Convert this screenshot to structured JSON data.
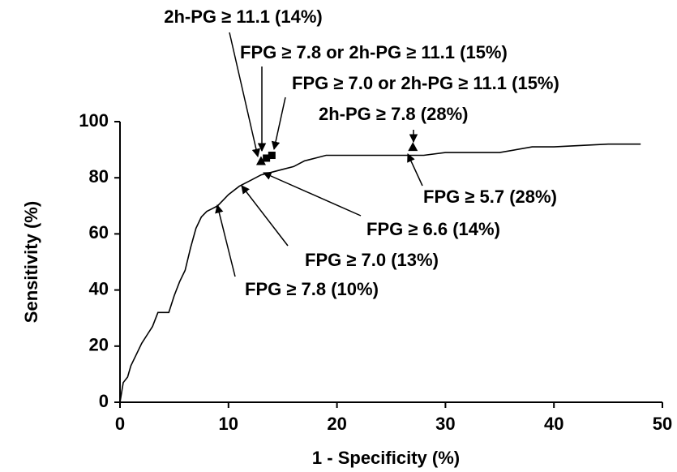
{
  "chart_data": {
    "type": "line",
    "x_label": "1 - Specificity (%)",
    "y_label": "Sensitivity (%)",
    "xlim": [
      0,
      50
    ],
    "xticks": [
      0,
      10,
      20,
      30,
      40,
      50
    ],
    "ylim": [
      0,
      100
    ],
    "yticks": [
      0,
      20,
      40,
      60,
      80,
      100
    ],
    "color": "#000000",
    "series": [
      {
        "x": [
          0,
          0.3,
          0.7,
          1,
          1.5,
          2,
          2.5,
          3,
          3.5,
          4,
          4.5,
          5,
          5.5,
          6,
          6.5,
          7,
          7.5,
          8,
          8.5,
          9,
          9.5,
          10,
          11,
          12,
          13,
          14,
          15,
          16,
          17,
          18,
          19,
          20,
          25,
          28,
          30,
          35,
          38,
          40,
          45,
          48
        ],
        "values": [
          0,
          7,
          9,
          13,
          17,
          21,
          24,
          27,
          32,
          32,
          32,
          38,
          43,
          47,
          55,
          62,
          66,
          68,
          69,
          70,
          72,
          74,
          77,
          79,
          81,
          82,
          83,
          84,
          86,
          87,
          88,
          88,
          88,
          88,
          89,
          89,
          91,
          91,
          92,
          92
        ]
      }
    ],
    "markers": {
      "x": [
        13,
        13.5,
        14,
        27
      ],
      "values": [
        86,
        87,
        88,
        91
      ],
      "shapes": [
        "triangle",
        "square",
        "square",
        "triangle"
      ]
    },
    "annotations": [
      "2h-PG ≥ 11.1 (14%)",
      "FPG ≥ 7.8 or 2h-PG ≥ 11.1 (15%)",
      "FPG ≥ 7.0 or 2h-PG ≥ 11.1 (15%)",
      "2h-PG ≥ 7.8 (28%)",
      "FPG ≥ 5.7 (28%)",
      "FPG ≥ 6.6 (14%)",
      "FPG ≥ 7.0 (13%)",
      "FPG ≥ 7.8 (10%)"
    ]
  }
}
